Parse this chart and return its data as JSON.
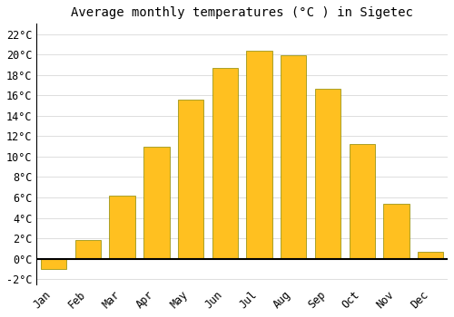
{
  "title": "Average monthly temperatures (°C ) in Sigetec",
  "months": [
    "Jan",
    "Feb",
    "Mar",
    "Apr",
    "May",
    "Jun",
    "Jul",
    "Aug",
    "Sep",
    "Oct",
    "Nov",
    "Dec"
  ],
  "values": [
    -1.0,
    1.8,
    6.2,
    11.0,
    15.6,
    18.7,
    20.4,
    19.9,
    16.6,
    11.2,
    5.4,
    0.7
  ],
  "bar_color": "#FFC020",
  "bar_edge_color": "#888800",
  "ylim": [
    -2.5,
    23
  ],
  "yticks": [
    -2,
    0,
    2,
    4,
    6,
    8,
    10,
    12,
    14,
    16,
    18,
    20,
    22
  ],
  "background_color": "#FFFFFF",
  "grid_color": "#DDDDDD",
  "title_fontsize": 10,
  "tick_fontsize": 8.5
}
